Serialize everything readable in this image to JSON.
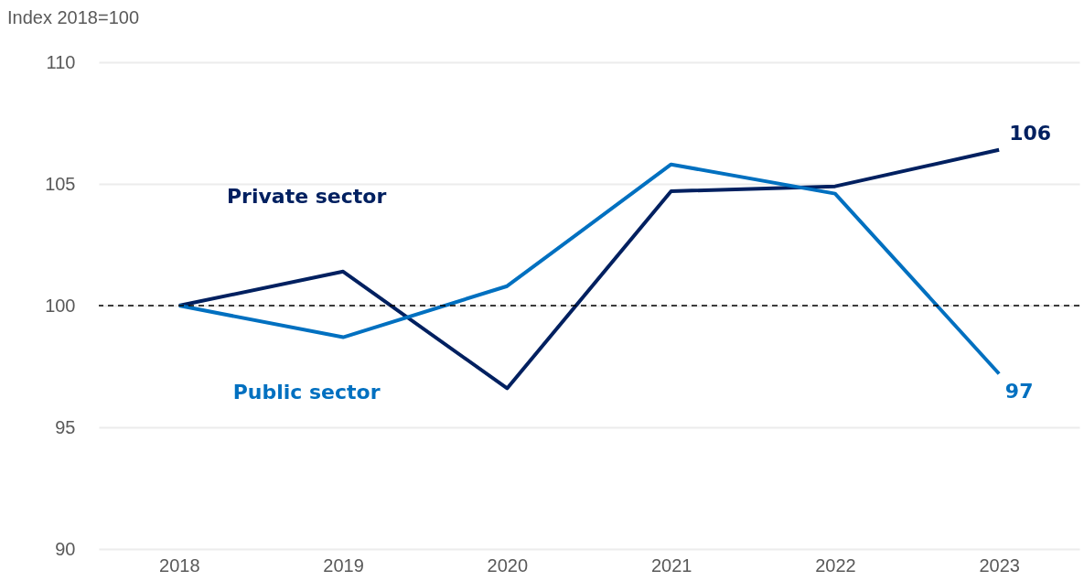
{
  "chart_data": {
    "type": "line",
    "ylabel": "Index 2018=100",
    "categories": [
      "2018",
      "2019",
      "2020",
      "2021",
      "2022",
      "2023"
    ],
    "series": [
      {
        "name": "Private sector",
        "color": "#002060",
        "values": [
          100,
          101.4,
          96.6,
          104.7,
          104.9,
          106.4
        ],
        "value_labels": [
          null,
          null,
          null,
          null,
          null,
          "106"
        ]
      },
      {
        "name": "Public sector",
        "color": "#0070c0",
        "values": [
          100,
          98.7,
          100.8,
          105.8,
          104.6,
          97.2
        ],
        "value_labels": [
          null,
          null,
          null,
          null,
          null,
          "97"
        ]
      }
    ],
    "ylim": [
      90,
      110
    ],
    "yticks": [
      90,
      95,
      100,
      105,
      110
    ],
    "grid": "y",
    "legend": false,
    "marker": "none",
    "line_style": "solid",
    "ref_lines": [
      {
        "axis": "y",
        "value": 100,
        "color": "#000000",
        "line_style": "dashed"
      }
    ]
  }
}
